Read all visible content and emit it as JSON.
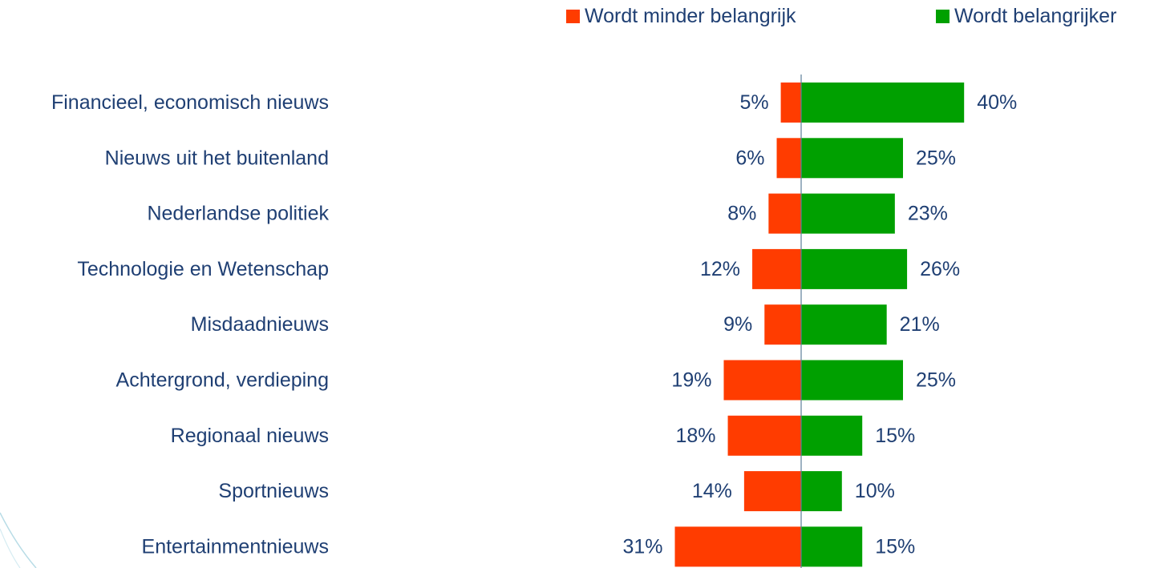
{
  "chart_data": {
    "type": "bar",
    "orientation": "horizontal-diverging",
    "categories": [
      "Financieel, economisch nieuws",
      "Nieuws uit het buitenland",
      "Nederlandse politiek",
      "Technologie en Wetenschap",
      "Misdaadnieuws",
      "Achtergrond, verdieping",
      "Regionaal nieuws",
      "Sportnieuws",
      "Entertainmentnieuws"
    ],
    "series": [
      {
        "name": "Wordt minder belangrijk",
        "color": "#FF3C00",
        "direction": "left",
        "values": [
          5,
          6,
          8,
          12,
          9,
          19,
          18,
          14,
          31
        ],
        "labels": [
          "5%",
          "6%",
          "8%",
          "12%",
          "9%",
          "19%",
          "18%",
          "14%",
          "31%"
        ]
      },
      {
        "name": "Wordt belangrijker",
        "color": "#00A000",
        "direction": "right",
        "values": [
          40,
          25,
          23,
          26,
          21,
          25,
          15,
          10,
          15
        ],
        "labels": [
          "40%",
          "25%",
          "23%",
          "26%",
          "21%",
          "25%",
          "15%",
          "10%",
          "15%"
        ]
      }
    ],
    "legend_position": "top-right",
    "grid": false,
    "unit": "%"
  },
  "colors": {
    "text": "#1F3F73",
    "axis": "#5E7F9A",
    "decoration": "#B8DCE6"
  }
}
